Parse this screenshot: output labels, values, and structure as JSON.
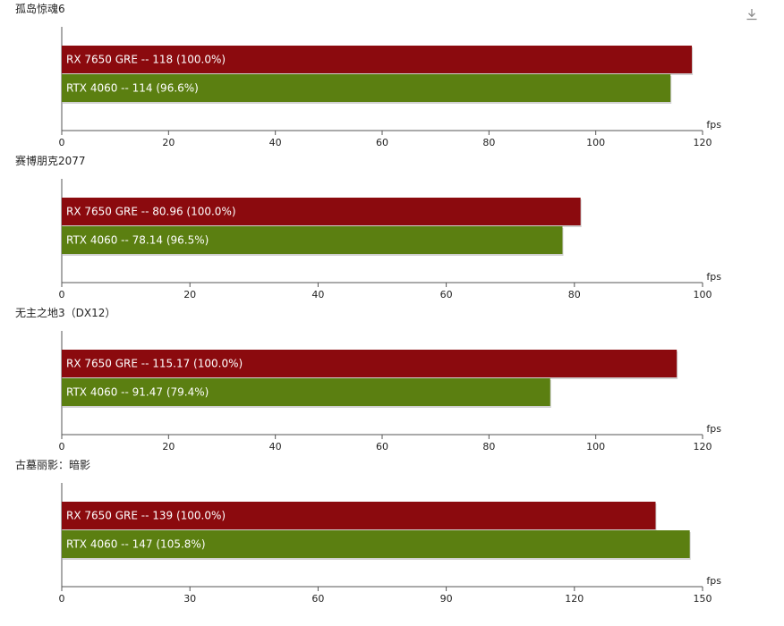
{
  "toolbar": {
    "download_icon": "download-icon"
  },
  "colors": {
    "series_1": "#8b0a0e",
    "series_2": "#5b7f11",
    "axis": "#555555",
    "text": "#222222"
  },
  "chart_data": [
    {
      "type": "bar",
      "orientation": "horizontal",
      "title": "孤岛惊魂6",
      "xlabel": "fps",
      "xlim": [
        0,
        120
      ],
      "ticks": [
        0,
        20,
        40,
        60,
        80,
        100,
        120
      ],
      "series": [
        {
          "name": "RX 7650 GRE",
          "value": 118,
          "label": "RX 7650 GRE  --  118 (100.0%)"
        },
        {
          "name": "RTX 4060",
          "value": 114,
          "label": "RTX 4060  --  114 (96.6%)"
        }
      ]
    },
    {
      "type": "bar",
      "orientation": "horizontal",
      "title": "赛博朋克2077",
      "xlabel": "fps",
      "xlim": [
        0,
        100
      ],
      "ticks": [
        0,
        20,
        40,
        60,
        80,
        100
      ],
      "series": [
        {
          "name": "RX 7650 GRE",
          "value": 80.96,
          "label": "RX 7650 GRE  --  80.96 (100.0%)"
        },
        {
          "name": "RTX 4060",
          "value": 78.14,
          "label": "RTX 4060  --  78.14 (96.5%)"
        }
      ]
    },
    {
      "type": "bar",
      "orientation": "horizontal",
      "title": "无主之地3（DX12）",
      "xlabel": "fps",
      "xlim": [
        0,
        120
      ],
      "ticks": [
        0,
        20,
        40,
        60,
        80,
        100,
        120
      ],
      "series": [
        {
          "name": "RX 7650 GRE",
          "value": 115.17,
          "label": "RX 7650 GRE  --  115.17 (100.0%)"
        },
        {
          "name": "RTX 4060",
          "value": 91.47,
          "label": "RTX 4060  --  91.47 (79.4%)"
        }
      ]
    },
    {
      "type": "bar",
      "orientation": "horizontal",
      "title": "古墓丽影：暗影",
      "xlabel": "fps",
      "xlim": [
        0,
        150
      ],
      "ticks": [
        0,
        30,
        60,
        90,
        120,
        150
      ],
      "series": [
        {
          "name": "RX 7650 GRE",
          "value": 139,
          "label": "RX 7650 GRE  --  139 (100.0%)"
        },
        {
          "name": "RTX 4060",
          "value": 147,
          "label": "RTX 4060  --  147 (105.8%)"
        }
      ]
    }
  ]
}
